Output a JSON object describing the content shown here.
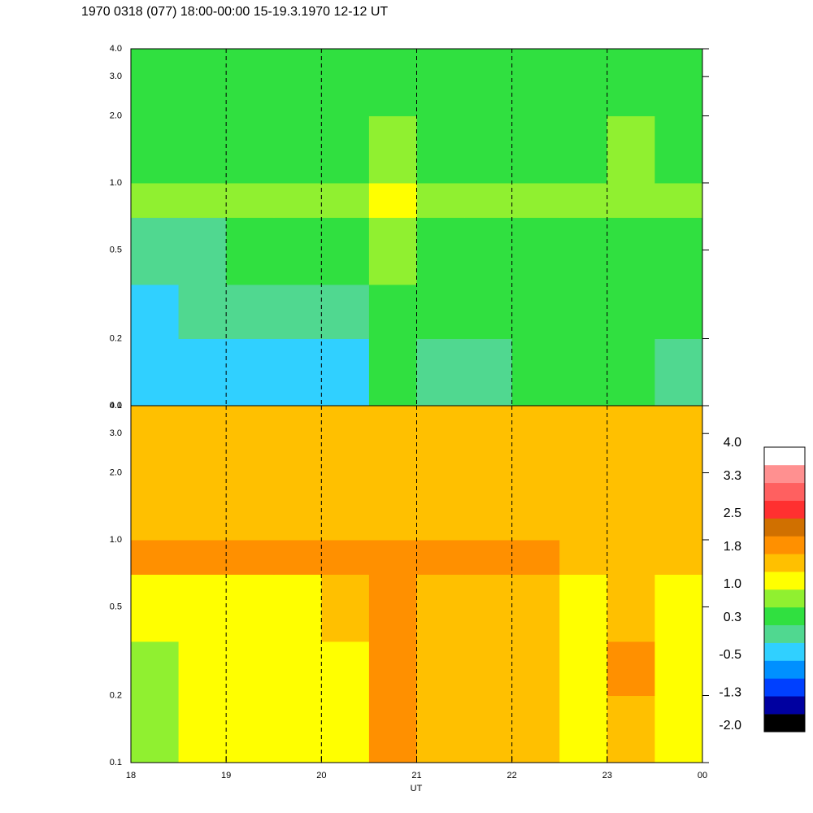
{
  "chart_data": {
    "type": "heatmap",
    "title": "1970 0318 (077) 18:00-00:00 15-19.3.1970  12-12 UT",
    "xlabel": "UT",
    "xlim": [
      18,
      24
    ],
    "xticks": [
      18,
      19,
      20,
      21,
      22,
      23,
      {
        "value": 24,
        "label": "00"
      }
    ],
    "ylim": [
      0.1,
      4.0
    ],
    "log_y": true,
    "yticks": [
      0.1,
      0.2,
      0.5,
      {
        "value": 1.0,
        "label": "1.0"
      },
      {
        "value": 2.0,
        "label": "2.0"
      },
      {
        "value": 3.0,
        "label": "3.0"
      },
      {
        "value": 4.0,
        "label": "4.0"
      }
    ],
    "grid": true,
    "xbins": [
      18,
      18.5,
      19,
      19.5,
      20,
      20.5,
      21,
      21.5,
      22,
      22.5,
      23,
      23.5,
      24
    ],
    "ybins": [
      0.1,
      0.2,
      0.35,
      0.7,
      1.0,
      2.0,
      4.0
    ],
    "panels": [
      {
        "z": [
          [
            -0.5,
            -0.5,
            -0.4,
            -0.3,
            -0.2,
            0.5,
            0.2,
            0.2,
            0.3,
            0.3,
            0.6,
            0.2
          ],
          [
            -0.2,
            -0.1,
            0,
            0,
            0.2,
            0.6,
            0.3,
            0.4,
            0.3,
            0.4,
            0.6,
            0.4
          ],
          [
            0.2,
            0.2,
            0.3,
            0.3,
            0.3,
            0.7,
            0.4,
            0.6,
            0.5,
            0.5,
            0.6,
            0.4
          ],
          [
            0.8,
            0.8,
            0.8,
            0.8,
            0.8,
            1.1,
            0.7,
            0.8,
            0.7,
            0.7,
            0.8,
            0.7
          ],
          [
            0.6,
            0.6,
            0.6,
            0.6,
            0.6,
            0.8,
            0.6,
            0.6,
            0.6,
            0.6,
            0.7,
            0.6
          ],
          [
            0.5,
            0.5,
            0.5,
            0.5,
            0.5,
            0.6,
            0.4,
            0.5,
            0.5,
            0.5,
            0.5,
            0.5
          ]
        ]
      },
      {
        "z": [
          [
            0.9,
            1.0,
            1.0,
            1.1,
            1.1,
            2.0,
            1.6,
            1.5,
            1.4,
            1.2,
            1.6,
            1.1
          ],
          [
            0.9,
            1.0,
            1.1,
            1.2,
            1.2,
            2.0,
            1.6,
            1.5,
            1.4,
            1.3,
            1.8,
            1.2
          ],
          [
            1.1,
            1.2,
            1.2,
            1.3,
            1.4,
            1.9,
            1.6,
            1.5,
            1.5,
            1.3,
            1.4,
            1.3
          ],
          [
            1.8,
            1.9,
            1.9,
            1.9,
            1.9,
            2.0,
            1.8,
            1.8,
            1.8,
            1.6,
            1.5,
            1.4
          ],
          [
            1.6,
            1.6,
            1.6,
            1.6,
            1.6,
            1.7,
            1.6,
            1.6,
            1.5,
            1.5,
            1.6,
            1.6
          ],
          [
            1.5,
            1.4,
            1.5,
            1.5,
            1.4,
            1.5,
            1.4,
            1.5,
            1.4,
            1.4,
            1.5,
            1.4
          ]
        ]
      }
    ],
    "colorscale": {
      "range": [
        -2.0,
        4.0
      ],
      "colors": [
        "#000000",
        "#0000a0",
        "#0040ff",
        "#0090ff",
        "#30d0ff",
        "#50d890",
        "#30e040",
        "#90f030",
        "#ffff00",
        "#ffc000",
        "#ff9000",
        "#d07000",
        "#ff3030",
        "#ff6060",
        "#ff9090",
        "#ffffff"
      ],
      "ticks": [
        {
          "value": -2.0,
          "label": "-2.0"
        },
        -1.3,
        -0.5,
        0.3,
        {
          "value": 1.0,
          "label": "1.0"
        },
        1.8,
        2.5,
        3.3,
        {
          "value": 4.0,
          "label": "4.0"
        }
      ]
    }
  }
}
